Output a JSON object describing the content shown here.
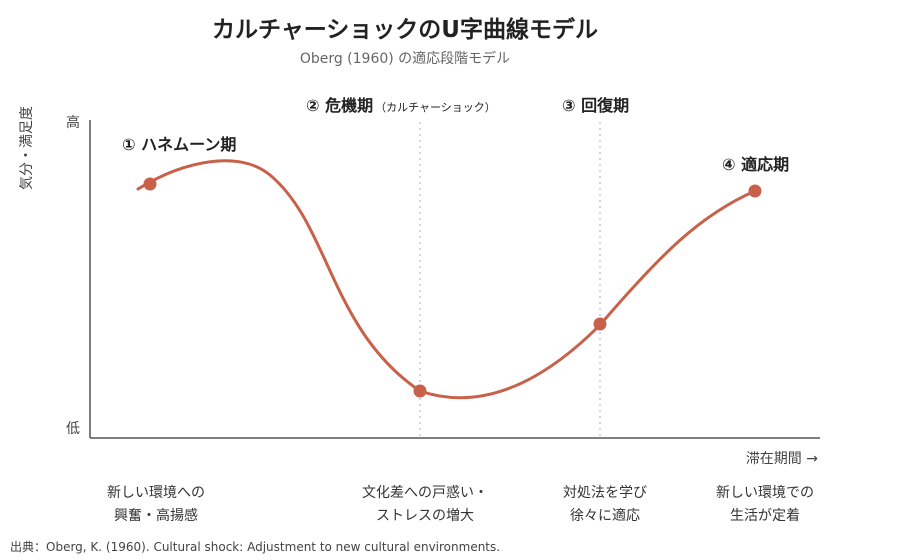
{
  "title": "カルチャーショックのU字曲線モデル",
  "subtitle": "Oberg (1960) の適応段階モデル",
  "y_axis": {
    "label": "気分・満足度",
    "high_label": "高",
    "low_label": "低"
  },
  "x_axis": {
    "label": "滞在期間 →"
  },
  "stages": [
    {
      "label": "① ハネムーン期",
      "note": "",
      "desc_line1": "新しい環境への",
      "desc_line2": "興奮・高揚感"
    },
    {
      "label": "② 危機期",
      "note": "（カルチャーショック）",
      "desc_line1": "文化差への戸惑い・",
      "desc_line2": "ストレスの増大"
    },
    {
      "label": "③ 回復期",
      "note": "",
      "desc_line1": "対処法を学び",
      "desc_line2": "徐々に適応"
    },
    {
      "label": "④ 適応期",
      "note": "",
      "desc_line1": "新しい環境での",
      "desc_line2": "生活が定着"
    }
  ],
  "colors": {
    "curve": "#c8614a",
    "axis": "#555555",
    "guide": "#bbbbbb"
  },
  "source": "出典：Oberg, K. (1960). Cultural shock: Adjustment to new cultural environments."
}
